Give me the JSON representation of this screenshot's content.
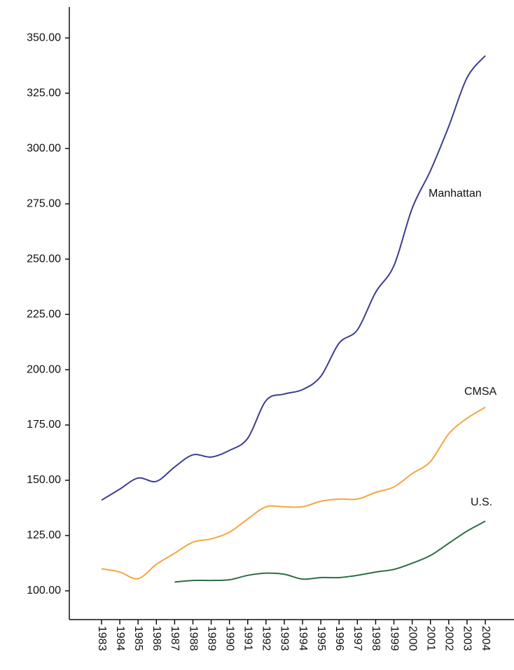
{
  "chart_data": {
    "type": "line",
    "categories": [
      "1983",
      "1984",
      "1985",
      "1986",
      "1987",
      "1988",
      "1989",
      "1990",
      "1991",
      "1992",
      "1993",
      "1994",
      "1995",
      "1996",
      "1997",
      "1998",
      "1999",
      "2000",
      "2001",
      "2002",
      "2003",
      "2004"
    ],
    "series": [
      {
        "name": "Manhattan",
        "color": "#3b3f8f",
        "values": [
          141,
          146,
          151,
          149.5,
          156,
          161.5,
          160.5,
          163.5,
          169,
          186,
          189,
          191,
          197,
          212,
          218,
          235,
          247,
          273,
          290,
          310,
          332,
          342
        ]
      },
      {
        "name": "CMSA",
        "color": "#f5a540",
        "values": [
          110,
          108.5,
          105.5,
          112,
          117,
          122,
          123.5,
          126.5,
          132.5,
          138,
          138,
          138,
          140.5,
          141.5,
          141.5,
          144.5,
          147,
          153,
          158.5,
          171,
          178,
          183
        ]
      },
      {
        "name": "U.S.",
        "color": "#2e6e44",
        "values": [
          null,
          null,
          null,
          null,
          104,
          104.7,
          104.7,
          105,
          107,
          108,
          107.5,
          105.3,
          106,
          106,
          107,
          108.5,
          109.7,
          112.5,
          116,
          121.5,
          127,
          131.5
        ]
      }
    ],
    "ylim": [
      87,
      364
    ],
    "yticks": [
      {
        "value": 100,
        "label": "100.00"
      },
      {
        "value": 125,
        "label": "125.00"
      },
      {
        "value": 150,
        "label": "150.00"
      },
      {
        "value": 175,
        "label": "175.00"
      },
      {
        "value": 200,
        "label": "200.00"
      },
      {
        "value": 225,
        "label": "225.00"
      },
      {
        "value": 250,
        "label": "250.00"
      },
      {
        "value": 275,
        "label": "275.00"
      },
      {
        "value": 300,
        "label": "300.00"
      },
      {
        "value": 325,
        "label": "325.00"
      },
      {
        "value": 350,
        "label": "350.00"
      }
    ]
  }
}
